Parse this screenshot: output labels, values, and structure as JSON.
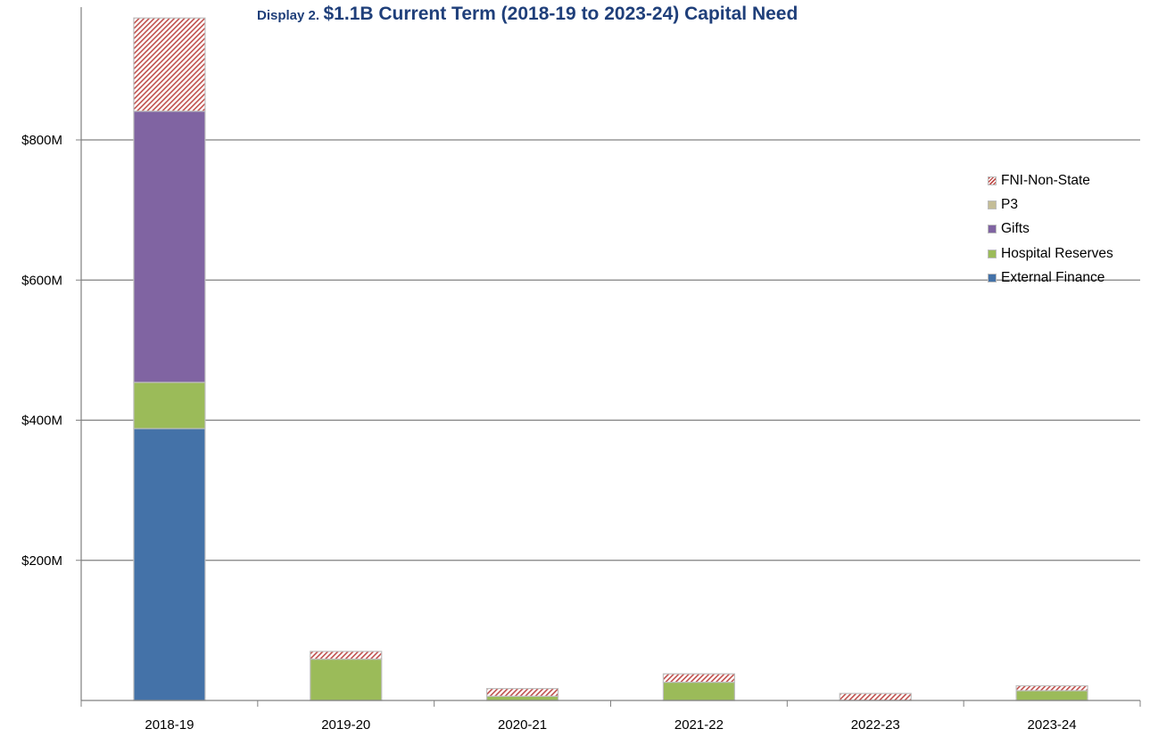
{
  "title": {
    "prefix": "Display 2.",
    "main": "$1.1B Current Term (2018-19 to 2023-24) Capital Need"
  },
  "chart_data": {
    "type": "bar",
    "stacked": true,
    "categories": [
      "2018-19",
      "2019-20",
      "2020-21",
      "2021-22",
      "2022-23",
      "2023-24"
    ],
    "series": [
      {
        "name": "External Finance",
        "color": "#4472A8",
        "pattern": "solid",
        "values": [
          388,
          0,
          0,
          0,
          0,
          0
        ]
      },
      {
        "name": "Hospital Reserves",
        "color": "#9BBB59",
        "pattern": "solid",
        "values": [
          66,
          59,
          6,
          26,
          0,
          14
        ]
      },
      {
        "name": "Gifts",
        "color": "#8064A2",
        "pattern": "solid",
        "values": [
          387,
          0,
          0,
          0,
          0,
          0
        ]
      },
      {
        "name": "P3",
        "color": "#C4BD97",
        "pattern": "solid",
        "values": [
          0,
          0,
          0,
          0,
          0,
          0
        ]
      },
      {
        "name": "FNI-Non-State",
        "color": "#C0504D",
        "pattern": "hatch",
        "values": [
          133,
          11,
          11,
          12,
          10,
          7
        ]
      }
    ],
    "yticks": [
      {
        "value": 200,
        "label": "$200M"
      },
      {
        "value": 400,
        "label": "$400M"
      },
      {
        "value": 600,
        "label": "$600M"
      },
      {
        "value": 800,
        "label": "$800M"
      }
    ],
    "ylim": [
      0,
      1000
    ],
    "grid": true,
    "legend_position": "right",
    "legend_order": [
      "FNI-Non-State",
      "P3",
      "Gifts",
      "Hospital Reserves",
      "External Finance"
    ]
  }
}
